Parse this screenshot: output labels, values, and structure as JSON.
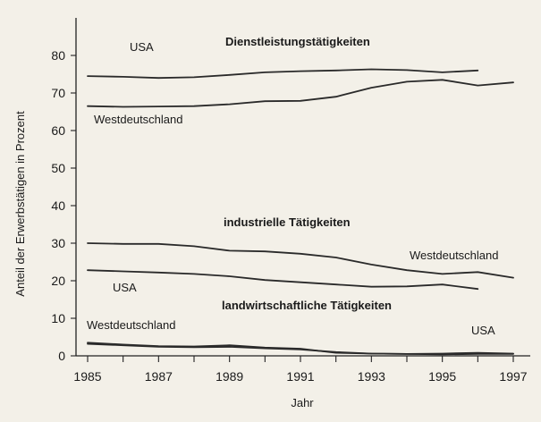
{
  "chart_data": {
    "type": "line",
    "title": "",
    "xlabel": "Jahr",
    "ylabel": "Anteil der Erwerbstätigen in Prozent",
    "xlim": [
      1985,
      1997
    ],
    "ylim": [
      0,
      85
    ],
    "x_ticks": [
      "1985",
      "1987",
      "1989",
      "1991",
      "1993",
      "1995",
      "1997"
    ],
    "y_ticks": [
      "0",
      "10",
      "20",
      "30",
      "40",
      "50",
      "60",
      "70",
      "80"
    ],
    "grid": false,
    "annotations": [
      {
        "text": "Dienstleistungstätigkeiten",
        "bold": true
      },
      {
        "text": "industrielle Tätigkeiten",
        "bold": true
      },
      {
        "text": "landwirtschaftliche Tätigkeiten",
        "bold": true
      },
      {
        "text": "USA",
        "bold": false
      },
      {
        "text": "Westdeutschland",
        "bold": false
      },
      {
        "text": "Westdeutschland",
        "bold": false
      },
      {
        "text": "USA",
        "bold": false
      },
      {
        "text": "Westdeutschland",
        "bold": false
      },
      {
        "text": "USA",
        "bold": false
      }
    ],
    "series": [
      {
        "name": "USA",
        "group": "Dienstleistungstätigkeiten",
        "x": [
          1985,
          1986,
          1987,
          1988,
          1989,
          1990,
          1991,
          1992,
          1993,
          1994,
          1995,
          1996
        ],
        "values": [
          74.5,
          74.3,
          74.0,
          74.2,
          74.8,
          75.5,
          75.8,
          76.0,
          76.3,
          76.1,
          75.5,
          76.0
        ]
      },
      {
        "name": "Westdeutschland",
        "group": "Dienstleistungstätigkeiten",
        "x": [
          1985,
          1986,
          1987,
          1988,
          1989,
          1990,
          1991,
          1992,
          1993,
          1994,
          1995,
          1996,
          1997
        ],
        "values": [
          66.5,
          66.3,
          66.4,
          66.5,
          67.0,
          67.8,
          67.9,
          69.0,
          71.4,
          73.0,
          73.5,
          72.0,
          72.8
        ]
      },
      {
        "name": "Westdeutschland",
        "group": "industrielle Tätigkeiten",
        "x": [
          1985,
          1986,
          1987,
          1988,
          1989,
          1990,
          1991,
          1992,
          1993,
          1994,
          1995,
          1996,
          1997
        ],
        "values": [
          30.0,
          29.8,
          29.8,
          29.2,
          28.0,
          27.8,
          27.2,
          26.2,
          24.3,
          22.8,
          21.8,
          22.3,
          20.8
        ]
      },
      {
        "name": "USA",
        "group": "industrielle Tätigkeiten",
        "x": [
          1985,
          1986,
          1987,
          1988,
          1989,
          1990,
          1991,
          1992,
          1993,
          1994,
          1995,
          1996
        ],
        "values": [
          22.8,
          22.5,
          22.2,
          21.8,
          21.2,
          20.2,
          19.6,
          19.0,
          18.4,
          18.5,
          19.0,
          17.8
        ]
      },
      {
        "name": "Westdeutschland",
        "group": "landwirtschaftliche Tätigkeiten",
        "x": [
          1985,
          1986,
          1987,
          1988,
          1989,
          1990,
          1991,
          1992,
          1993,
          1994,
          1995,
          1996,
          1997
        ],
        "values": [
          3.5,
          3.0,
          2.6,
          2.5,
          2.8,
          2.2,
          1.9,
          0.8,
          0.6,
          0.5,
          0.6,
          0.8,
          0.6
        ]
      },
      {
        "name": "USA",
        "group": "landwirtschaftliche Tätigkeiten",
        "x": [
          1985,
          1986,
          1987,
          1988,
          1989,
          1990,
          1991,
          1992,
          1993,
          1994,
          1995,
          1996,
          1997
        ],
        "values": [
          3.2,
          2.8,
          2.4,
          2.3,
          2.4,
          2.0,
          1.7,
          1.0,
          0.6,
          0.5,
          0.4,
          0.5,
          0.5
        ]
      }
    ]
  }
}
